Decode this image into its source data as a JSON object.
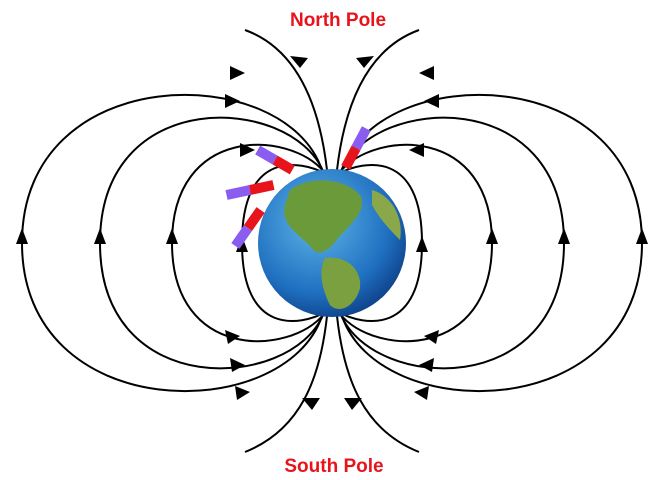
{
  "labels": {
    "north": "North Pole",
    "south": "South Pole"
  }
}
